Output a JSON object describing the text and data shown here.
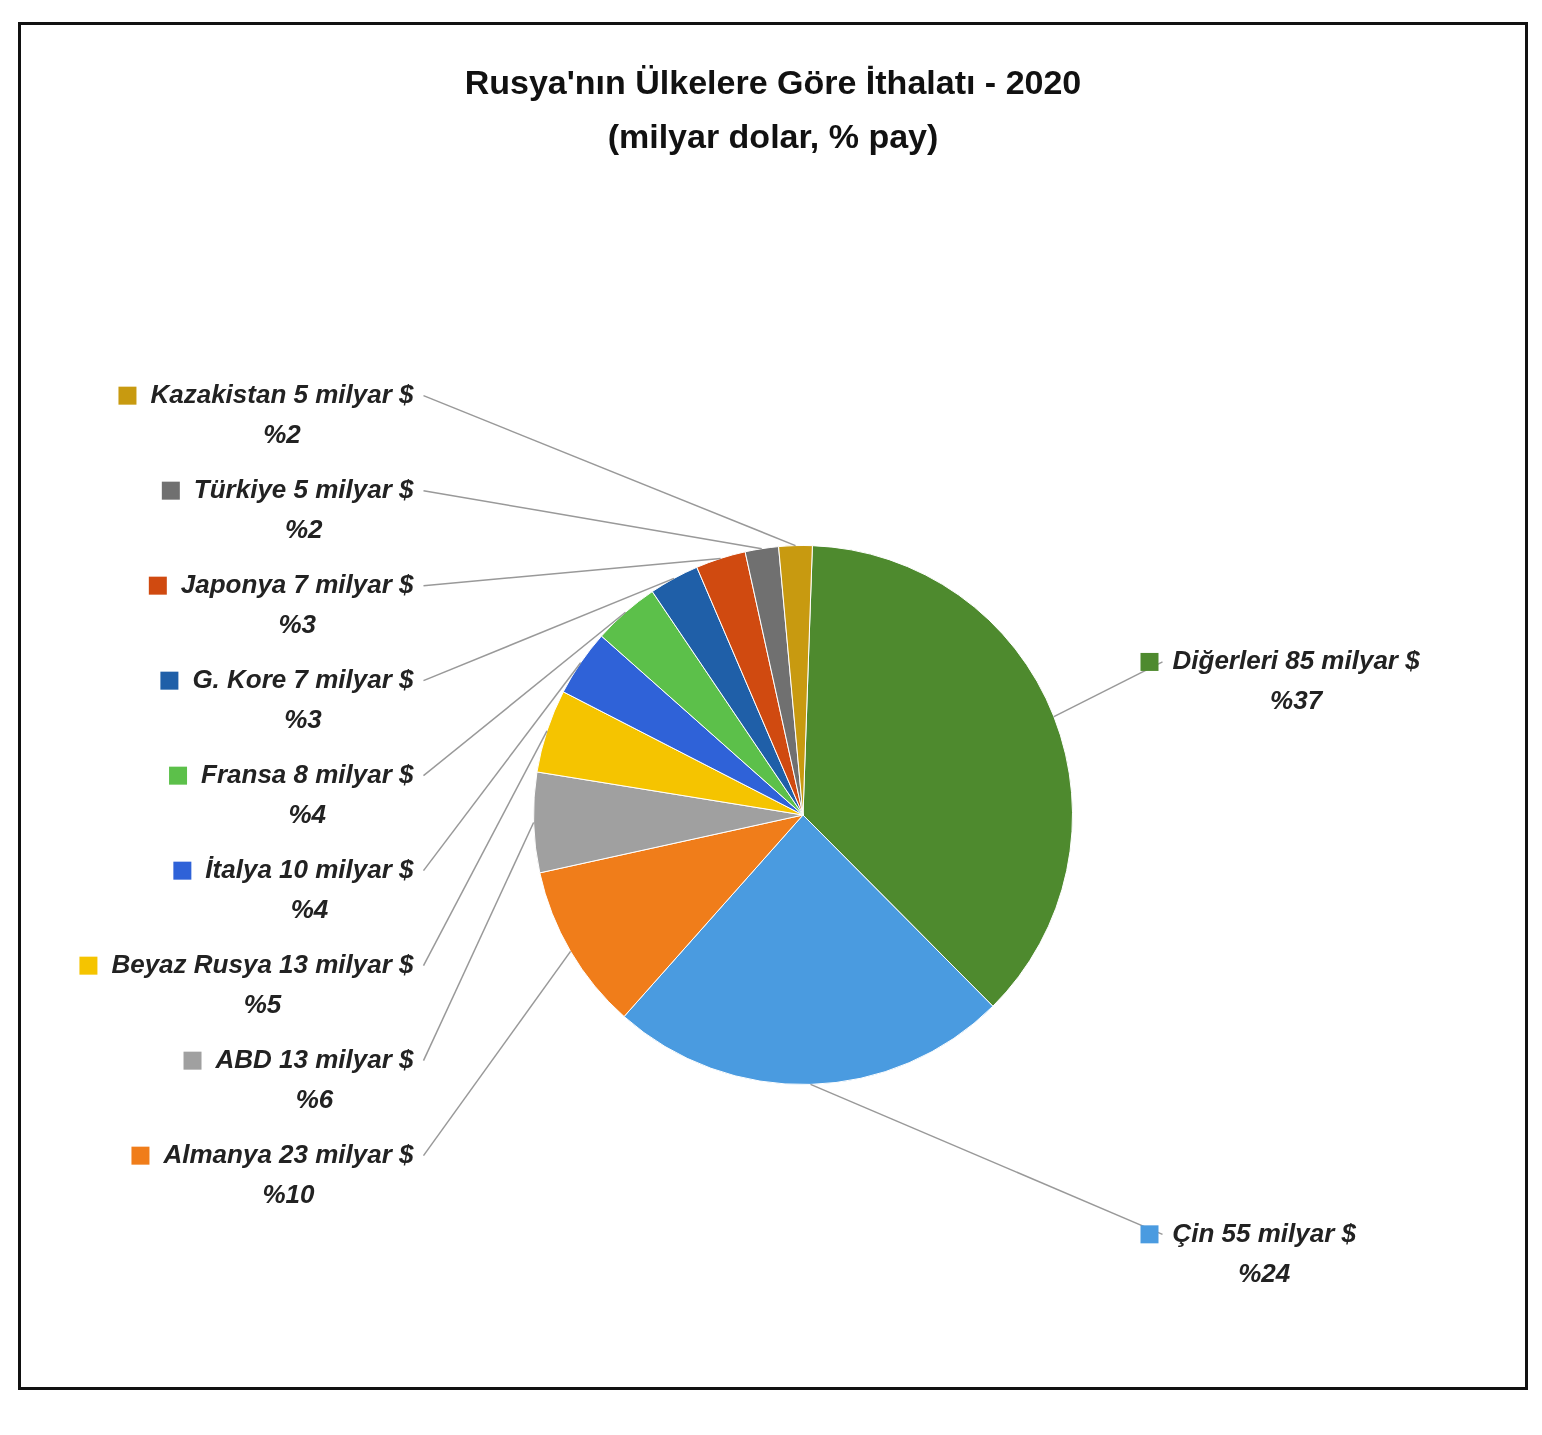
{
  "chart_data": {
    "type": "pie",
    "title": "Rusya'nın Ülkelere Göre İthalatı - 2020",
    "subtitle": "(milyar dolar, % pay)",
    "categories": [
      "Diğerleri 85 milyar $",
      "Çin 55 milyar $",
      "Almanya 23 milyar $",
      "ABD 13 milyar $",
      "Beyaz Rusya 13 milyar $",
      "İtalya 10 milyar $",
      "Fransa 8 milyar $",
      "G. Kore 7 milyar $",
      "Japonya 7 milyar $",
      "Türkiye 5 milyar $",
      "Kazakistan 5 milyar $"
    ],
    "values": [
      37,
      24,
      10,
      6,
      5,
      4,
      4,
      3,
      3,
      2,
      2
    ],
    "legend": "left",
    "value_labels": [
      "%37",
      "%24",
      "%10",
      "%6",
      "%5",
      "%4",
      "%4",
      "%3",
      "%3",
      "%2",
      "%2"
    ],
    "colors": [
      "#4e8a2e",
      "#4a9be0",
      "#f07d1a",
      "#a0a0a0",
      "#f5c400",
      "#2f62d8",
      "#5cc04a",
      "#1f5fa8",
      "#d04a10",
      "#707070",
      "#c89a10"
    ]
  }
}
